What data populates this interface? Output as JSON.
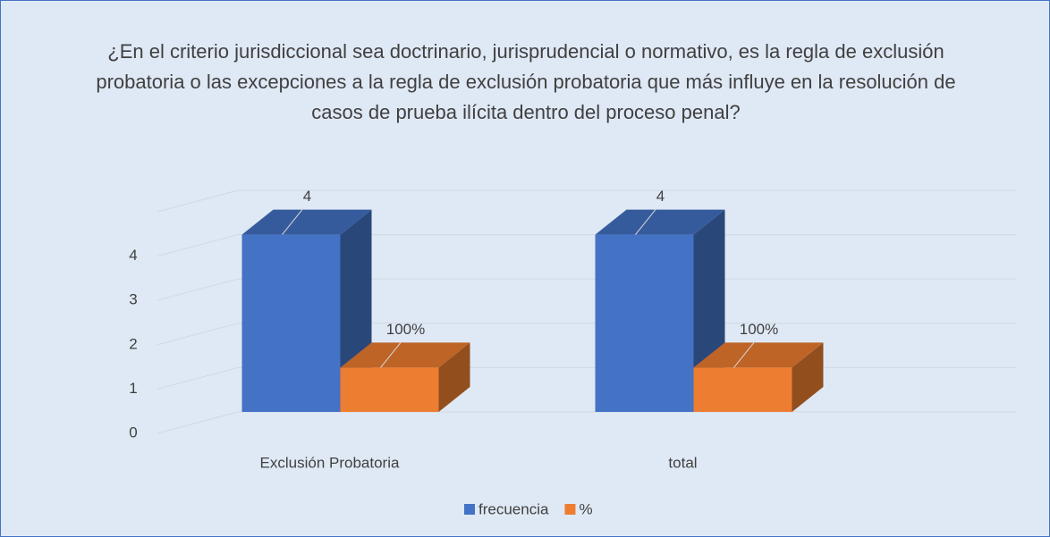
{
  "chart_data": {
    "type": "bar3d",
    "title": "¿En el criterio jurisdiccional sea doctrinario, jurisprudencial o normativo, es la regla de exclusión probatoria o las excepciones a la regla de exclusión probatoria que más influye en la resolución de casos de prueba ilícita dentro del proceso penal?",
    "categories": [
      "Exclusión Probatoria",
      "total"
    ],
    "series": [
      {
        "name": "frecuencia",
        "color": "#4472c4",
        "values": [
          4,
          4
        ],
        "value_labels": [
          "4",
          "4"
        ]
      },
      {
        "name": "%",
        "color": "#ed7d31",
        "values": [
          1,
          1
        ],
        "value_labels": [
          "100%",
          "100%"
        ]
      }
    ],
    "ylim": [
      0,
      5
    ],
    "yticks": [
      0,
      1,
      2,
      3,
      4
    ],
    "grid": true,
    "legend": "bottom"
  }
}
